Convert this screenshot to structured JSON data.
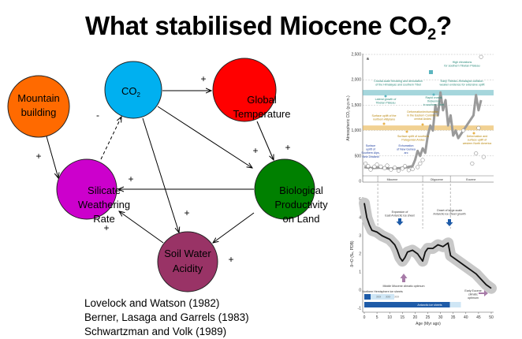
{
  "slide": {
    "title_main": "What stabilised Miocene CO",
    "title_sub": "2",
    "title_end": "?"
  },
  "diagram": {
    "nodes": {
      "mountain": {
        "lines": [
          "Mountain",
          "building"
        ],
        "color": "#FF6A00"
      },
      "co2": {
        "label": "CO",
        "sub": "2",
        "color": "#00B0F0"
      },
      "temperature": {
        "lines": [
          "Global",
          "Temperature"
        ],
        "color": "#FF0000"
      },
      "silicate": {
        "lines": [
          "Silicate",
          "Weathering",
          "Rate"
        ],
        "color": "#CC00CC"
      },
      "biological": {
        "lines": [
          "Biological",
          "Productivity",
          "on Land"
        ],
        "color": "#008000"
      },
      "soil": {
        "lines": [
          "Soil Water",
          "Acidity"
        ],
        "color": "#993366"
      }
    },
    "signs": {
      "co2_temp": "+",
      "mountain_silicate": "+",
      "silicate_co2": "-",
      "bio_silicate": "+",
      "co2_bio": "+",
      "temp_bio": "+",
      "co2_soil": "+",
      "bio_soil": "+",
      "soil_silicate": "+"
    }
  },
  "citations": [
    "Lovelock and Watson (1982)",
    "Berner, Lasaga and Garrels (1983)",
    "Schwartzman and Volk (1989)"
  ],
  "figure": {
    "panel_a": {
      "label": "a",
      "ylabel": "Atmospheric CO₂ (p.p.m.)",
      "yticks": [
        "0",
        "500",
        "1,000",
        "1,500",
        "2,000",
        "2,500"
      ],
      "epochs": [
        "Miocene",
        "Oligocene",
        "Eocene"
      ],
      "annotations": {
        "high_elev": [
          "High elevations",
          "for southern Tibetan Plateau"
        ],
        "crustal": [
          "Crustal-scale thrusting and denudation",
          "of the Himalayas and southern Tibet"
        ],
        "early_collision": [
          "Early Tibetan–Himalayan collision:",
          "weaker evidence for extensive uplift"
        ],
        "lateral": [
          "Lateral growth of",
          "Tibetan Plateau"
        ],
        "rapid": [
          "Rapid crustal",
          "thickening",
          "in southern Tibet"
        ],
        "deform_andes": [
          "Deformation/exhumation",
          "in the Eastern Cordillera,",
          "central Andes"
        ],
        "altiplano": [
          "Surface uplift of the",
          "northern Altiplano"
        ],
        "patagonia": [
          "Surface uplift of southern",
          "Patagonian Andes"
        ],
        "north_america": [
          "Deformation and",
          "surface uplift of",
          "western North America"
        ],
        "alps": [
          "Surface",
          "uplift of",
          "Southern Alps,",
          "New Zealand"
        ],
        "guinea": [
          "Exhumation",
          "of New Guinea",
          "arc"
        ]
      },
      "co2_band": [
        [
          0,
          280
        ],
        [
          3,
          260
        ],
        [
          6,
          270
        ],
        [
          10,
          250
        ],
        [
          14,
          260
        ],
        [
          17,
          280
        ],
        [
          19,
          300
        ],
        [
          20,
          420
        ],
        [
          21,
          600
        ],
        [
          22,
          500
        ],
        [
          23,
          650
        ],
        [
          24,
          560
        ],
        [
          25,
          900
        ],
        [
          26,
          1100
        ],
        [
          27,
          1000
        ],
        [
          28,
          1500
        ],
        [
          29,
          1300
        ],
        [
          30,
          1750
        ],
        [
          31,
          1400
        ],
        [
          32,
          1600
        ],
        [
          33,
          1100
        ],
        [
          34,
          1300
        ],
        [
          35,
          900
        ],
        [
          36,
          1000
        ],
        [
          37,
          850
        ],
        [
          43,
          1300
        ],
        [
          44,
          1700
        ],
        [
          45,
          1400
        ],
        [
          46,
          1600
        ]
      ],
      "proxies": [
        [
          0.5,
          350
        ],
        [
          1.5,
          300
        ],
        [
          2.5,
          230
        ],
        [
          4,
          290
        ],
        [
          5,
          330
        ],
        [
          6.5,
          290
        ],
        [
          8,
          260
        ],
        [
          9,
          310
        ],
        [
          10.5,
          230
        ],
        [
          12,
          270
        ],
        [
          13.5,
          210
        ],
        [
          15,
          250
        ],
        [
          16,
          300
        ],
        [
          17.5,
          220
        ],
        [
          19,
          240
        ],
        [
          21,
          280
        ],
        [
          22,
          350
        ],
        [
          23,
          420
        ],
        [
          39,
          1000
        ],
        [
          42.5,
          350
        ],
        [
          44,
          550
        ],
        [
          45,
          1050
        ],
        [
          47,
          480
        ],
        [
          46,
          2450
        ]
      ]
    },
    "panel_b": {
      "label": "b",
      "ylabel": "δ¹⁸O (‰, PDB)",
      "yticks": [
        "-1",
        "0",
        "1",
        "2",
        "3",
        "4",
        "5"
      ],
      "xticks": [
        "0",
        "5",
        "10",
        "15",
        "20",
        "25",
        "30",
        "35",
        "40",
        "45",
        "50"
      ],
      "xlabel": "Age (Myr ago)",
      "annotations": {
        "expansion": [
          "Expansion of",
          "East Antarctic ice sheet"
        ],
        "onset": [
          "Onset of large-scale",
          "Antarctic ice sheet growth"
        ],
        "mmco": [
          "Middle Miocene climatic optimum"
        ],
        "nh_ice": [
          "Northern Hemisphere ice sheets"
        ],
        "ant_ice": [
          "Antarctic ice sheets"
        ],
        "eeco": [
          "Early Eocene",
          "climatic",
          "optimum"
        ],
        "uncertain": "???"
      },
      "d18o": [
        [
          0,
          4.8
        ],
        [
          1,
          4.0
        ],
        [
          2,
          3.6
        ],
        [
          3,
          3.3
        ],
        [
          5,
          3.2
        ],
        [
          7,
          3.0
        ],
        [
          10,
          2.8
        ],
        [
          12,
          2.5
        ],
        [
          13,
          2.2
        ],
        [
          14,
          1.8
        ],
        [
          15,
          1.6
        ],
        [
          16,
          1.8
        ],
        [
          17,
          2.1
        ],
        [
          19,
          2.2
        ],
        [
          21,
          2.0
        ],
        [
          22,
          1.8
        ],
        [
          23,
          1.6
        ],
        [
          24,
          2.1
        ],
        [
          25,
          2.3
        ],
        [
          27,
          2.3
        ],
        [
          29,
          2.5
        ],
        [
          31,
          2.4
        ],
        [
          33,
          2.6
        ],
        [
          34,
          1.9
        ],
        [
          36,
          1.7
        ],
        [
          38,
          1.5
        ],
        [
          40,
          1.3
        ],
        [
          42,
          1.1
        ],
        [
          44,
          0.9
        ],
        [
          46,
          0.6
        ],
        [
          48,
          0.3
        ],
        [
          50,
          0.1
        ]
      ]
    },
    "colors": {
      "teal": "#5BB5BF",
      "gold": "#E8B24A",
      "blue": "#1E5BA8",
      "purple": "#A77BA8",
      "gray": "#9A9A9A",
      "band": "#C8C8C8"
    }
  }
}
